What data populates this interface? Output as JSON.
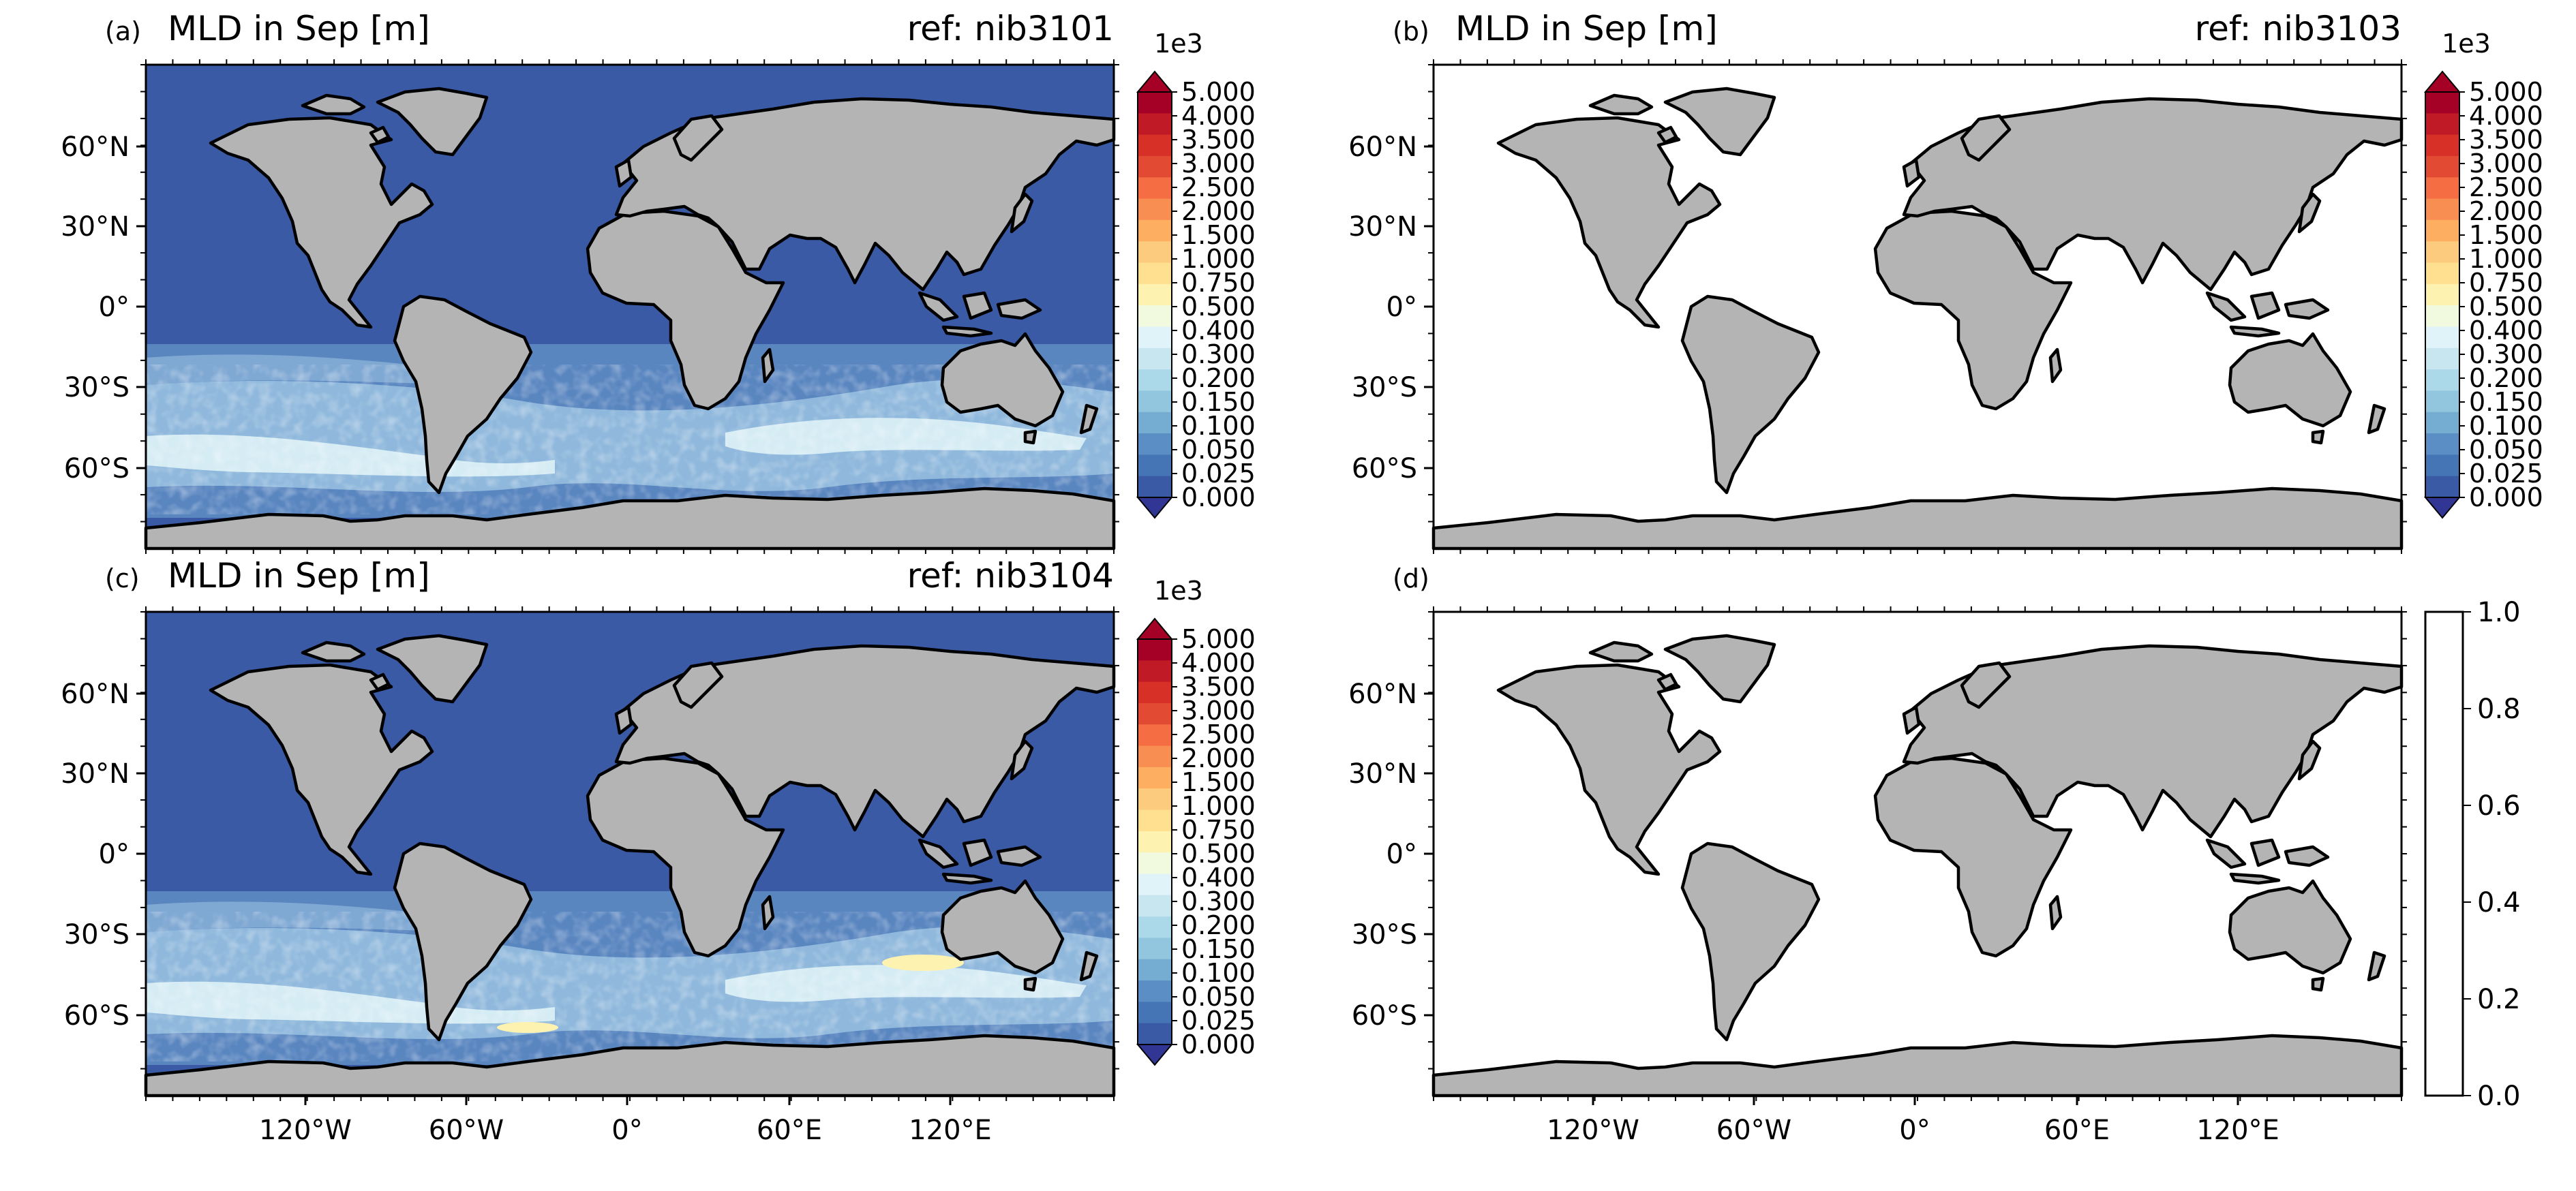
{
  "figure": {
    "panels": [
      {
        "letter": "(a)",
        "title": "MLD in Sep [m]",
        "ref": "ref: nib3101",
        "colorbar": "mld",
        "field": "mld",
        "deep_patch": false
      },
      {
        "letter": "(b)",
        "title": "MLD in Sep [m]",
        "ref": "ref: nib3103",
        "colorbar": "mld",
        "field": "none",
        "deep_patch": false
      },
      {
        "letter": "(c)",
        "title": "MLD in Sep [m]",
        "ref": "ref: nib3104",
        "colorbar": "mld",
        "field": "mld",
        "deep_patch": true
      },
      {
        "letter": "(d)",
        "title": "",
        "ref": "",
        "colorbar": "plain",
        "field": "none",
        "deep_patch": false
      }
    ],
    "lat_ticks": [
      "60°N",
      "30°N",
      "0°",
      "30°S",
      "60°S"
    ],
    "lon_ticks": [
      "120°W",
      "60°W",
      "0°",
      "60°E",
      "120°E"
    ],
    "mld_colorbar": {
      "exponent": "1e3",
      "labels": [
        "5.000",
        "4.000",
        "3.500",
        "3.000",
        "2.500",
        "2.000",
        "1.500",
        "1.000",
        "0.750",
        "0.500",
        "0.400",
        "0.300",
        "0.200",
        "0.150",
        "0.100",
        "0.050",
        "0.025",
        "0.000"
      ],
      "colors": [
        "#a50026",
        "#c01a27",
        "#d73027",
        "#e34a33",
        "#f46d43",
        "#f98e52",
        "#fdae61",
        "#fdcb7d",
        "#fee090",
        "#fef2b1",
        "#f1f9df",
        "#e0f3f8",
        "#c8e6f0",
        "#abd9e9",
        "#92c5de",
        "#74add1",
        "#5b8ec4",
        "#4575b4",
        "#3b5aa6"
      ],
      "over_color": "#a50026",
      "under_color": "#313695"
    },
    "plain_colorbar": {
      "labels": [
        "1.0",
        "0.8",
        "0.6",
        "0.4",
        "0.2",
        "0.0"
      ]
    },
    "colors": {
      "land": "#b4b4b4",
      "ocean_shallow": "#3b5aa6",
      "coast": "#000000"
    }
  }
}
